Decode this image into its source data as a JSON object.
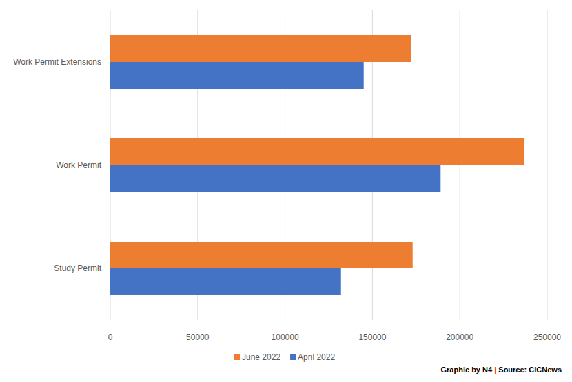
{
  "chart_data": {
    "type": "bar",
    "orientation": "horizontal",
    "categories": [
      "Work Permit Extensions",
      "Work Permit",
      "Study Permit"
    ],
    "series": [
      {
        "name": "June 2022",
        "color": "#ed7d31",
        "values": [
          172000,
          237000,
          173000
        ]
      },
      {
        "name": "April 2022",
        "color": "#4472c4",
        "values": [
          145000,
          189000,
          132000
        ]
      }
    ],
    "xlim": [
      0,
      250000
    ],
    "xticks": [
      0,
      50000,
      100000,
      150000,
      200000,
      250000
    ],
    "grid": true,
    "legend": "bottom",
    "annotations": [
      "Graphic by N4",
      "|",
      "Source: CICNews"
    ]
  }
}
